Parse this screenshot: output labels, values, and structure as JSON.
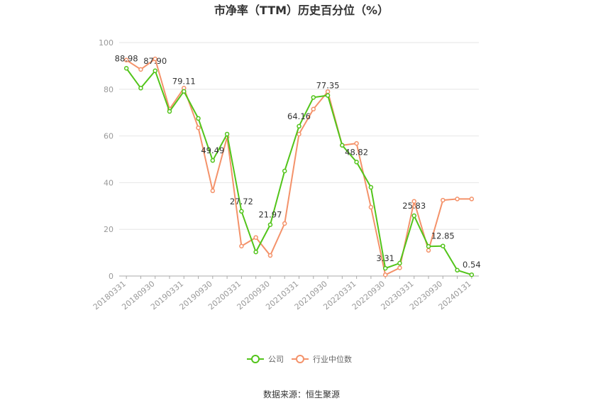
{
  "chart_data": {
    "type": "line",
    "title": "市净率（TTM）历史百分位（%）",
    "xlabel": "",
    "ylabel": "",
    "ylim": [
      0,
      100
    ],
    "yticks": [
      0,
      20,
      40,
      60,
      80,
      100
    ],
    "grid": true,
    "legend": "bottom",
    "x": [
      "20180331",
      "20180630",
      "20180930",
      "20181231",
      "20190331",
      "20190630",
      "20190930",
      "20191231",
      "20200331",
      "20200630",
      "20200930",
      "20201231",
      "20210331",
      "20210630",
      "20210930",
      "20211231",
      "20220331",
      "20220630",
      "20220930",
      "20221231",
      "20230331",
      "20230630",
      "20230930",
      "20231231",
      "20240131"
    ],
    "xtick_labels": [
      "20180331",
      "20180930",
      "20190331",
      "20190930",
      "20200331",
      "20200930",
      "20210331",
      "20210930",
      "20220331",
      "20220930",
      "20230331",
      "20230930",
      "20240131"
    ],
    "series": [
      {
        "name": "公司",
        "color": "#52c41a",
        "values": [
          88.98,
          80.5,
          87.9,
          70.5,
          79.11,
          67.5,
          49.49,
          60.8,
          27.72,
          10.3,
          21.97,
          45.0,
          64.16,
          76.5,
          77.35,
          56.0,
          48.82,
          38.0,
          3.31,
          5.5,
          25.83,
          12.7,
          12.85,
          2.5,
          0.54
        ],
        "labels": {
          "0": "88.98",
          "2": "87.90",
          "4": "79.11",
          "6": "49.49",
          "8": "27.72",
          "10": "21.97",
          "12": "64.16",
          "14": "77.35",
          "16": "48.82",
          "18": "3.31",
          "20": "25.83",
          "22": "12.85",
          "24": "0.54"
        }
      },
      {
        "name": "行业中位数",
        "color": "#f4926a",
        "values": [
          92.5,
          88.5,
          93.0,
          71.5,
          80.5,
          63.5,
          36.5,
          59.5,
          12.8,
          16.5,
          8.8,
          22.5,
          60.8,
          71.5,
          79.0,
          56.0,
          56.8,
          29.5,
          0.5,
          3.5,
          32.0,
          11.0,
          32.5,
          33.0,
          33.0
        ]
      }
    ]
  },
  "source": "数据来源：恒生聚源"
}
